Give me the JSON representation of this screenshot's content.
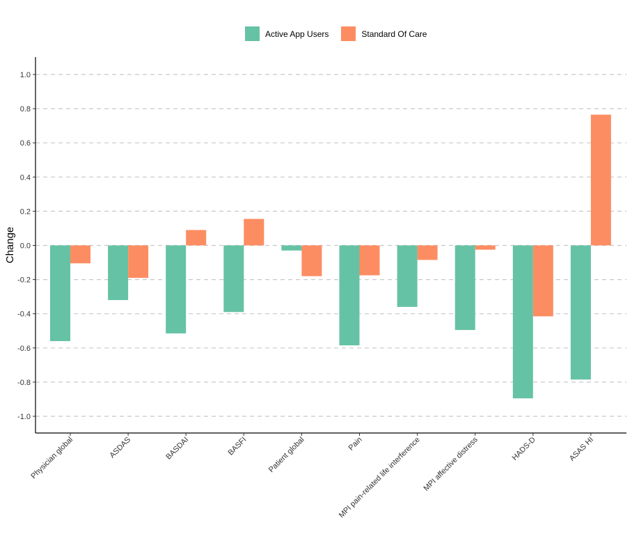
{
  "chart_data": {
    "type": "bar",
    "categories": [
      "Physician global",
      "ASDAS",
      "BASDAI",
      "BASFI",
      "Patient global",
      "Pain",
      "MPI pain-related life interference",
      "MPI affective distress",
      "HADS-D",
      "ASAS HI"
    ],
    "series": [
      {
        "name": "Active App Users",
        "color": "#66c2a5",
        "values": [
          -0.56,
          -0.32,
          -0.515,
          -0.39,
          -0.03,
          -0.585,
          -0.36,
          -0.495,
          -0.895,
          -0.785
        ]
      },
      {
        "name": "Standard Of Care",
        "color": "#fc8d62",
        "values": [
          -0.105,
          -0.19,
          0.09,
          0.155,
          -0.18,
          -0.175,
          -0.085,
          -0.025,
          -0.415,
          0.765
        ]
      }
    ],
    "ylabel": "Change",
    "xlabel": "",
    "ylim": [
      -1.1,
      1.1
    ],
    "yticks": [
      1.0,
      0.8,
      0.6,
      0.4,
      0.2,
      0.0,
      -0.2,
      -0.4,
      -0.6,
      -0.8,
      -1.0
    ],
    "ytick_labels": [
      "1.0",
      "0.8",
      "0.6",
      "0.4",
      "0.2",
      "0.0",
      "-0.2",
      "-0.4",
      "-0.6",
      "-0.8",
      "-1.0"
    ],
    "grid": "horizontal-dashed",
    "legend_position": "top-center"
  }
}
